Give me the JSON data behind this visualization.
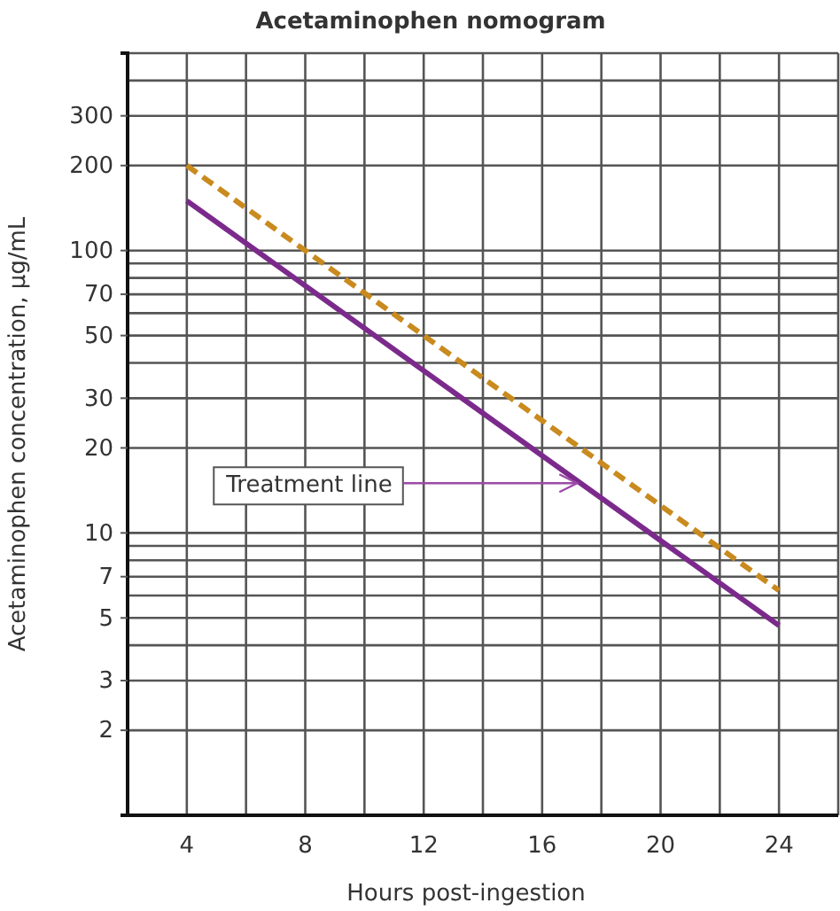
{
  "chart_data": {
    "type": "line",
    "title": "Acetaminophen nomogram",
    "xlabel": "Hours post-ingestion",
    "ylabel": "Acetaminophen concentration, µg/mL",
    "log": "y",
    "grid": true,
    "xlim": [
      2,
      26
    ],
    "x": [
      4,
      24
    ],
    "xticks": [
      {
        "value": 2,
        "label": null
      },
      4,
      {
        "value": 6,
        "label": null
      },
      8,
      {
        "value": 10,
        "label": null
      },
      12,
      {
        "value": 14,
        "label": null
      },
      16,
      {
        "value": 18,
        "label": null
      },
      20,
      {
        "value": 22,
        "label": null
      },
      24,
      {
        "value": 26,
        "label": null
      }
    ],
    "ylim": [
      1,
      500
    ],
    "yticks": [
      2,
      3,
      {
        "value": 4,
        "label": null
      },
      5,
      {
        "value": 6,
        "label": null
      },
      7,
      {
        "value": 8,
        "label": null
      },
      {
        "value": 9,
        "label": null
      },
      10,
      20,
      30,
      {
        "value": 40,
        "label": null
      },
      50,
      {
        "value": 60,
        "label": null
      },
      70,
      {
        "value": 80,
        "label": null
      },
      {
        "value": 90,
        "label": null
      },
      100,
      200,
      300,
      {
        "value": 400,
        "label": null
      },
      {
        "value": 500,
        "label": null
      }
    ],
    "series": [
      {
        "color": "#c98a1e",
        "line_style": "dashed",
        "values": [
          200,
          6.25
        ]
      },
      {
        "color": "#7b2a8c",
        "line_style": "solid",
        "values": [
          150,
          4.7
        ]
      }
    ],
    "annotations": [
      {
        "text": "Treatment line",
        "x": 17.3,
        "y": 15
      }
    ]
  }
}
